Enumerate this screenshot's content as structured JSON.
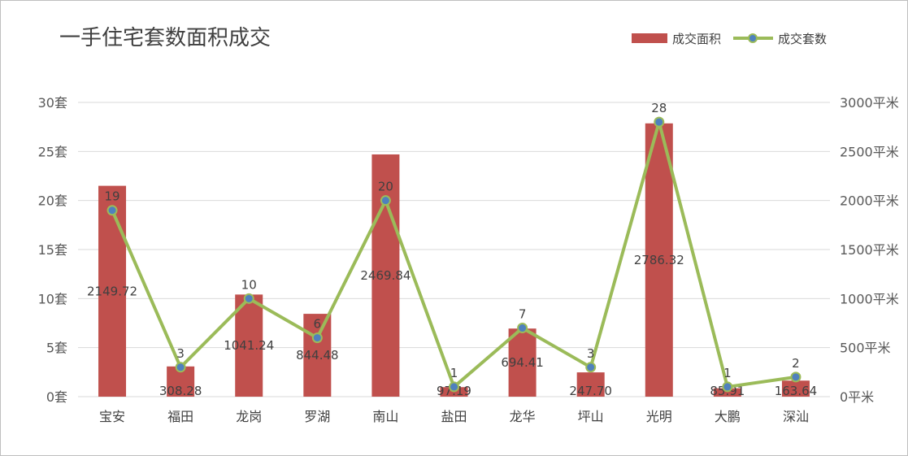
{
  "chart_data": {
    "type": "bar",
    "title": "一手住宅套数面积成交",
    "categories": [
      "宝安",
      "福田",
      "龙岗",
      "罗湖",
      "南山",
      "盐田",
      "龙华",
      "坪山",
      "光明",
      "大鹏",
      "深汕"
    ],
    "series": [
      {
        "name": "成交面积",
        "type": "bar",
        "axis": "right",
        "values": [
          2149.72,
          308.28,
          1041.24,
          844.48,
          2469.84,
          97.19,
          694.41,
          247.7,
          2786.32,
          85.91,
          163.64
        ],
        "labels": [
          "2149.72",
          "308.28",
          "1041.24",
          "844.48",
          "2469.84",
          "97.19",
          "694.41",
          "247.70",
          "2786.32",
          "85.91",
          "163.64"
        ],
        "color": "#c0504d"
      },
      {
        "name": "成交套数",
        "type": "line",
        "axis": "left",
        "values": [
          19,
          3,
          10,
          6,
          20,
          1,
          7,
          3,
          28,
          1,
          2
        ],
        "labels": [
          "19",
          "3",
          "10",
          "6",
          "20",
          "1",
          "7",
          "3",
          "28",
          "1",
          "2"
        ],
        "color": "#9bbb59",
        "marker_color": "#4f81bd"
      }
    ],
    "y_left": {
      "range": [
        0,
        30
      ],
      "ticks": [
        0,
        5,
        10,
        15,
        20,
        25,
        30
      ],
      "tick_labels": [
        "0套",
        "5套",
        "10套",
        "15套",
        "20套",
        "25套",
        "30套"
      ]
    },
    "y_right": {
      "range": [
        0,
        3000
      ],
      "ticks": [
        0,
        500,
        1000,
        1500,
        2000,
        2500,
        3000
      ],
      "tick_labels": [
        "0平米",
        "500平米",
        "1000平米",
        "1500平米",
        "2000平米",
        "2500平米",
        "3000平米"
      ]
    },
    "grid": true,
    "legend_position": "top-right",
    "gridline_color": "#d9d9d9"
  }
}
